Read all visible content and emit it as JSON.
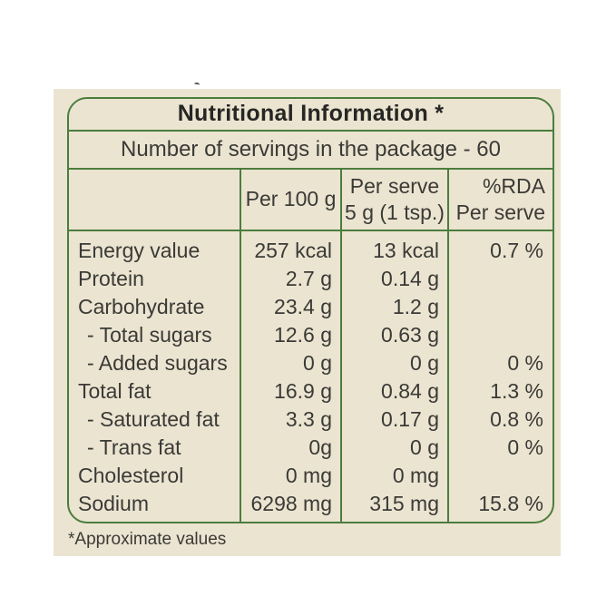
{
  "colors": {
    "page_background": "#ffffff",
    "label_background": "#ebe4d1",
    "border_green": "#4b7d3c",
    "text": "#3a3a36"
  },
  "label": {
    "title": "Nutritional Information *",
    "servings_line": "Number of servings in the package - 60",
    "columns": {
      "per_100g": "Per 100 g",
      "per_serve_line1": "Per serve",
      "per_serve_line2": "5 g (1 tsp.)",
      "rda_line1": "%RDA",
      "rda_line2": "Per serve"
    },
    "rows": [
      {
        "label": "Energy value",
        "per_100g": "257 kcal",
        "per_serve": "13 kcal",
        "rda": "0.7 %"
      },
      {
        "label": "Protein",
        "per_100g": "2.7 g",
        "per_serve": "0.14 g",
        "rda": ""
      },
      {
        "label": "Carbohydrate",
        "per_100g": "23.4 g",
        "per_serve": "1.2 g",
        "rda": ""
      },
      {
        "label": "- Total sugars",
        "per_100g": "12.6 g",
        "per_serve": "0.63 g",
        "rda": ""
      },
      {
        "label": "- Added sugars",
        "per_100g": "0 g",
        "per_serve": "0 g",
        "rda": "0 %"
      },
      {
        "label": "Total fat",
        "per_100g": "16.9 g",
        "per_serve": "0.84 g",
        "rda": "1.3 %"
      },
      {
        "label": "- Saturated fat",
        "per_100g": "3.3 g",
        "per_serve": "0.17 g",
        "rda": "0.8 %"
      },
      {
        "label": "- Trans fat",
        "per_100g": "0g",
        "per_serve": "0 g",
        "rda": "0 %"
      },
      {
        "label": "Cholesterol",
        "per_100g": "0 mg",
        "per_serve": "0 mg",
        "rda": ""
      },
      {
        "label": "Sodium",
        "per_100g": "6298 mg",
        "per_serve": "315 mg",
        "rda": "15.8 %"
      }
    ],
    "footnote": "*Approximate values"
  }
}
